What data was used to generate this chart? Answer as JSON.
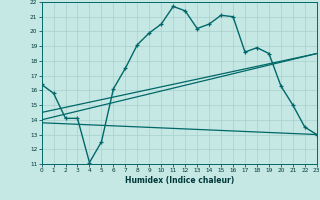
{
  "xlabel": "Humidex (Indice chaleur)",
  "bg_color": "#c5e8e5",
  "grid_color": "#a8d0cc",
  "line_color": "#006868",
  "ylim": [
    11,
    22
  ],
  "xlim": [
    0,
    23
  ],
  "yticks": [
    11,
    12,
    13,
    14,
    15,
    16,
    17,
    18,
    19,
    20,
    21,
    22
  ],
  "xticks": [
    0,
    1,
    2,
    3,
    4,
    5,
    6,
    7,
    8,
    9,
    10,
    11,
    12,
    13,
    14,
    15,
    16,
    17,
    18,
    19,
    20,
    21,
    22,
    23
  ],
  "line1_x": [
    0,
    1,
    2,
    3,
    4,
    5,
    6,
    7,
    8,
    9,
    10,
    11,
    12,
    13,
    14,
    15,
    16,
    17,
    18,
    19,
    20,
    21,
    22,
    23
  ],
  "line1_y": [
    16.4,
    15.8,
    14.1,
    14.1,
    11.1,
    12.5,
    16.1,
    17.5,
    19.1,
    19.9,
    20.5,
    21.7,
    21.4,
    20.2,
    20.5,
    21.1,
    21.0,
    18.6,
    18.9,
    18.5,
    16.3,
    15.0,
    13.5,
    13.0
  ],
  "line2_x": [
    0,
    23
  ],
  "line2_y": [
    13.8,
    13.0
  ],
  "line3_x": [
    0,
    23
  ],
  "line3_y": [
    14.0,
    18.5
  ],
  "line4_x": [
    0,
    23
  ],
  "line4_y": [
    14.5,
    18.5
  ]
}
